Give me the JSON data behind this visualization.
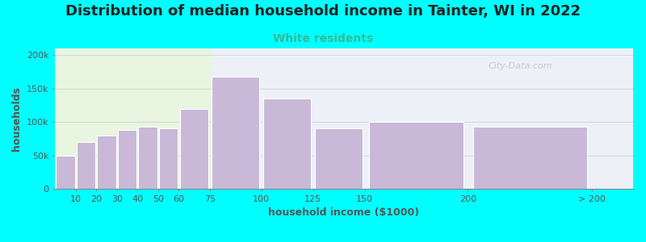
{
  "title": "Distribution of median household income in Tainter, WI in 2022",
  "subtitle": "White residents",
  "xlabel": "household income ($1000)",
  "ylabel": "households",
  "background_outer": "#00FFFF",
  "background_inner_left": "#e8f5e0",
  "background_inner_right": "#eef0f8",
  "bar_color": "#c9b8d8",
  "bar_edge_color": "#ffffff",
  "title_fontsize": 13,
  "subtitle_fontsize": 10,
  "subtitle_color": "#33bb99",
  "xlabel_fontsize": 9,
  "ylabel_fontsize": 9,
  "tick_label_fontsize": 8,
  "bar_left_edges": [
    0,
    10,
    20,
    30,
    40,
    50,
    60,
    75,
    100,
    125,
    150,
    200
  ],
  "bar_widths": [
    10,
    10,
    10,
    10,
    10,
    10,
    15,
    25,
    25,
    25,
    50,
    60
  ],
  "values": [
    50000,
    70000,
    80000,
    88000,
    93000,
    90000,
    120000,
    168000,
    135000,
    90000,
    100000,
    93000
  ],
  "xtick_positions": [
    10,
    20,
    30,
    40,
    50,
    60,
    75,
    100,
    125,
    150,
    200,
    260
  ],
  "xtick_labels": [
    "10",
    "20",
    "30",
    "40",
    "50",
    "60",
    "75",
    "100",
    "125",
    "150",
    "200",
    "> 200"
  ],
  "xlim": [
    0,
    280
  ],
  "ylim": [
    0,
    210000
  ],
  "yticks": [
    0,
    50000,
    100000,
    150000,
    200000
  ],
  "ytick_labels": [
    "0",
    "50k",
    "100k",
    "150k",
    "200k"
  ],
  "green_zone_end": 75,
  "watermark": "City-Data.com"
}
